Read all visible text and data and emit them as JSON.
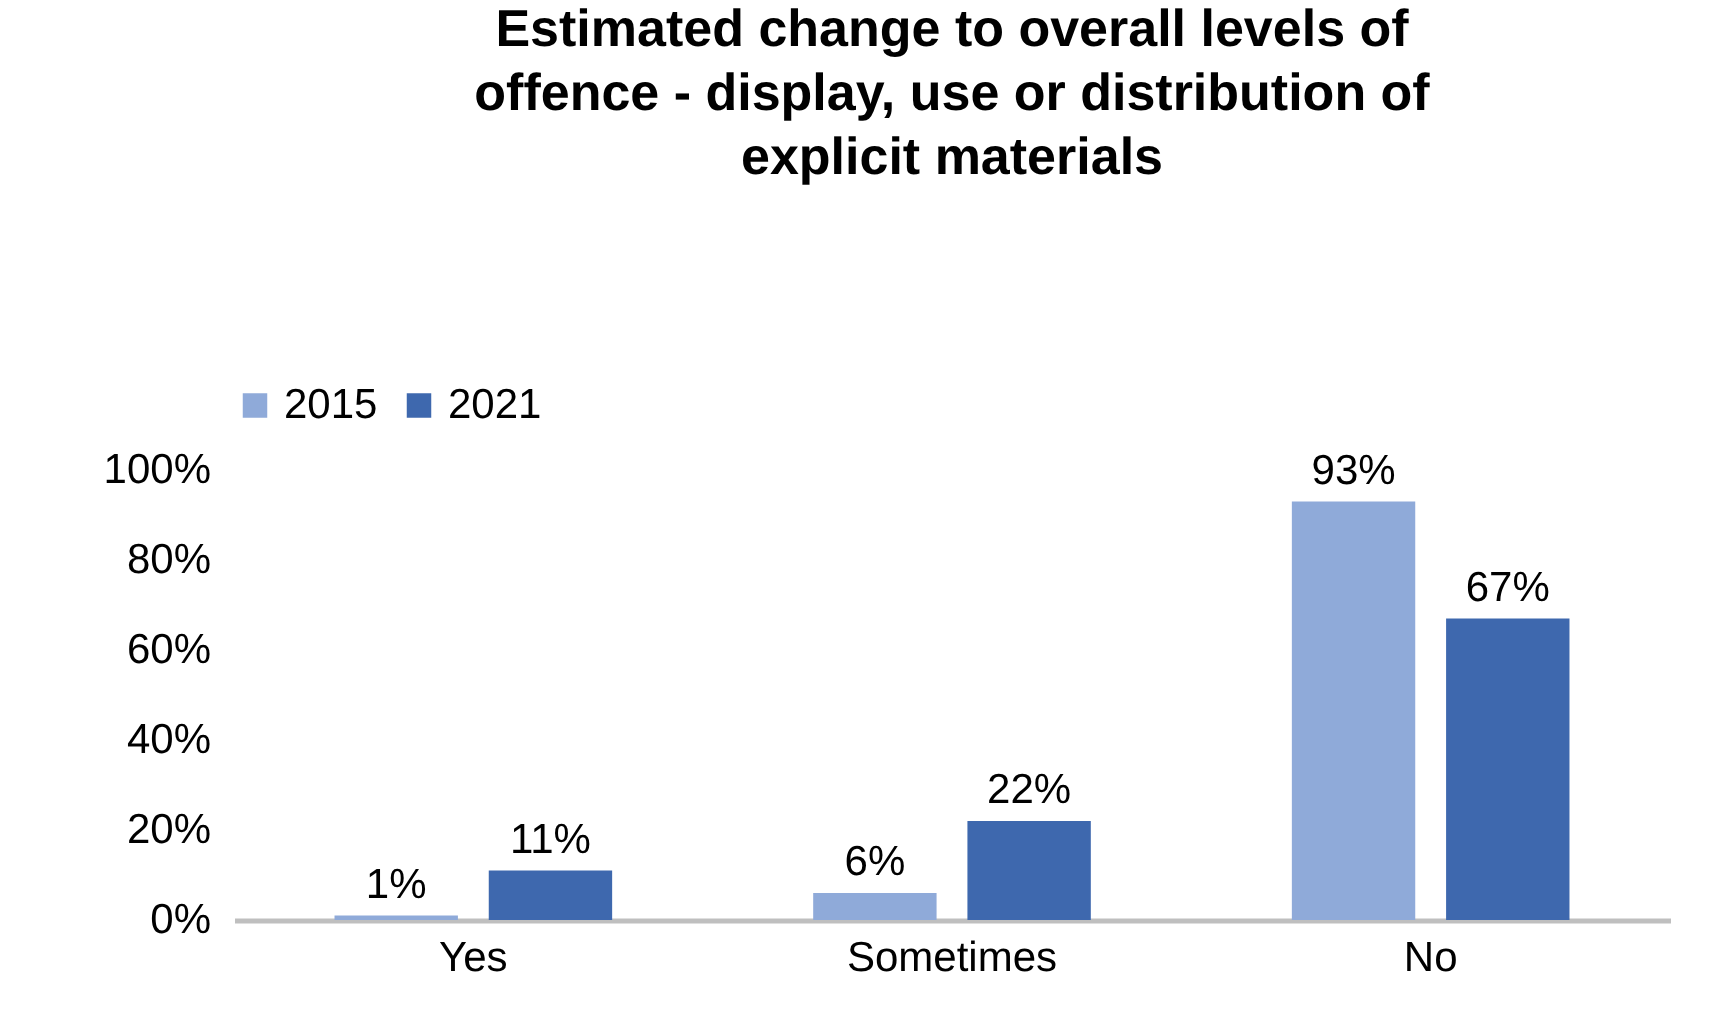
{
  "chart_data": {
    "type": "bar",
    "title": "Estimated change to overall levels of offence - display, use or distribution of explicit materials",
    "categories": [
      "Yes",
      "Sometimes",
      "No"
    ],
    "series": [
      {
        "name": "2015",
        "color": "#8faad9",
        "values": [
          1,
          6,
          93
        ],
        "value_labels": [
          "1%",
          "6%",
          "93%"
        ]
      },
      {
        "name": "2021",
        "color": "#3e68ae",
        "values": [
          11,
          22,
          67
        ],
        "value_labels": [
          "11%",
          "22%",
          "67%"
        ]
      }
    ],
    "ylim": [
      0,
      100
    ],
    "yticks": [
      {
        "value": 0,
        "label": "0%"
      },
      {
        "value": 20,
        "label": "20%"
      },
      {
        "value": 40,
        "label": "40%"
      },
      {
        "value": 60,
        "label": "60%"
      },
      {
        "value": 80,
        "label": "80%"
      },
      {
        "value": 100,
        "label": "100%"
      }
    ],
    "grid": false,
    "legend": "top"
  }
}
